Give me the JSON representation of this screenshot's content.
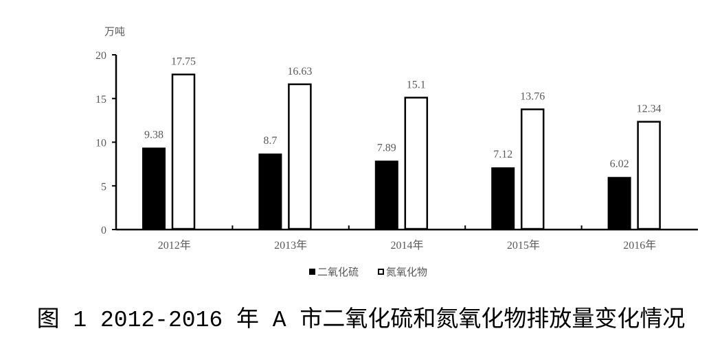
{
  "chart_data": {
    "type": "bar",
    "ylabel": "万吨",
    "ylim": [
      0,
      20
    ],
    "yticks": [
      0,
      5,
      10,
      15,
      20
    ],
    "categories": [
      "2012年",
      "2013年",
      "2014年",
      "2015年",
      "2016年"
    ],
    "series": [
      {
        "name": "二氧化硫",
        "values": [
          9.38,
          8.7,
          7.89,
          7.12,
          6.02
        ],
        "color": "#000000"
      },
      {
        "name": "氮氧化物",
        "values": [
          17.75,
          16.63,
          15.1,
          13.76,
          12.34
        ],
        "color": "#ffffff"
      }
    ],
    "data_labels": [
      [
        "9.38",
        "8.7",
        "7.89",
        "7.12",
        "6.02"
      ],
      [
        "17.75",
        "16.63",
        "15.1",
        "13.76",
        "12.34"
      ]
    ],
    "legend_position": "bottom",
    "grid": false
  },
  "caption": "图 1 2012-2016 年 A 市二氧化硫和氮氧化物排放量变化情况"
}
